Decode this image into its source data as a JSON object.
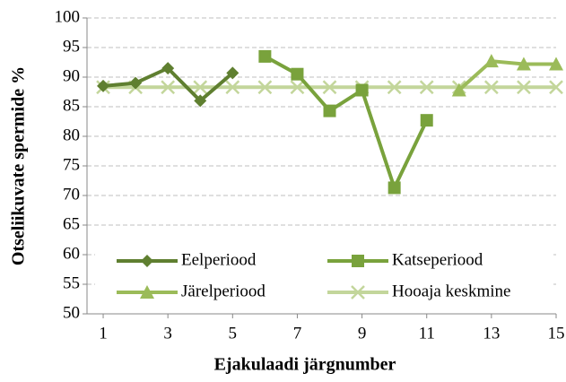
{
  "chart_data": {
    "type": "line",
    "x_label": "Ejakulaadi järgnumber",
    "y_label": "Otseliikuvate spermide %",
    "x": [
      1,
      2,
      3,
      4,
      5,
      6,
      7,
      8,
      9,
      10,
      11,
      12,
      13,
      14,
      15
    ],
    "series": [
      {
        "name": "Eelperiood",
        "color": "#5f7f30",
        "marker": "diamond",
        "values": [
          88.5,
          89,
          91.5,
          86,
          90.7,
          null,
          null,
          null,
          null,
          null,
          null,
          null,
          null,
          null,
          null
        ]
      },
      {
        "name": "Katseperiood",
        "color": "#79a23c",
        "marker": "square",
        "values": [
          null,
          null,
          null,
          null,
          null,
          93.5,
          90.5,
          84.3,
          87.8,
          71.3,
          82.7,
          null,
          null,
          null,
          null
        ]
      },
      {
        "name": "Järelperiood",
        "color": "#9bbb59",
        "marker": "triangle",
        "values": [
          null,
          null,
          null,
          null,
          null,
          null,
          null,
          null,
          null,
          null,
          null,
          87.8,
          92.7,
          92.2,
          92.2
        ]
      },
      {
        "name": "Hooaja keskmine",
        "color": "#c3d69b",
        "marker": "cross",
        "values": [
          88.3,
          88.3,
          88.3,
          88.3,
          88.3,
          88.3,
          88.3,
          88.3,
          88.3,
          88.3,
          88.3,
          88.3,
          88.3,
          88.3,
          88.3
        ]
      }
    ],
    "xlim": [
      0.5,
      15
    ],
    "xticks": [
      1,
      3,
      5,
      7,
      9,
      11,
      13,
      15
    ],
    "ylim": [
      50,
      100
    ],
    "yticks": [
      50,
      55,
      60,
      65,
      70,
      75,
      80,
      85,
      90,
      95,
      100
    ],
    "grid": true,
    "legend": "bottom"
  }
}
